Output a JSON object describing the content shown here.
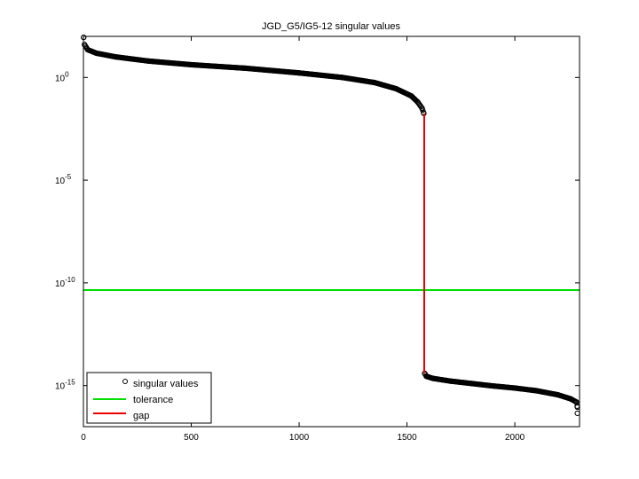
{
  "chart_data": {
    "type": "scatter",
    "title": "JGD_G5/IG5-12 singular values",
    "xlabel": "",
    "ylabel": "",
    "xlim": [
      0,
      2300
    ],
    "ylim_log10": [
      -17,
      2
    ],
    "yscale": "log",
    "grid": false,
    "legend_position": "bottom-left",
    "x_ticks": [
      0,
      500,
      1000,
      1500,
      2000
    ],
    "y_ticks": [
      {
        "base": "10",
        "exp": "0",
        "value_log10": 0
      },
      {
        "base": "10",
        "exp": "-5",
        "value_log10": -5
      },
      {
        "base": "10",
        "exp": "-10",
        "value_log10": -10
      },
      {
        "base": "10",
        "exp": "-15",
        "value_log10": -15
      }
    ],
    "series": [
      {
        "name": "singular values",
        "style": "black-open-circles",
        "color": "#000000",
        "curve_log10": [
          {
            "x": 1,
            "y": 1.95
          },
          {
            "x": 5,
            "y": 1.6
          },
          {
            "x": 20,
            "y": 1.35
          },
          {
            "x": 60,
            "y": 1.18
          },
          {
            "x": 150,
            "y": 1.0
          },
          {
            "x": 300,
            "y": 0.8
          },
          {
            "x": 500,
            "y": 0.62
          },
          {
            "x": 750,
            "y": 0.45
          },
          {
            "x": 1000,
            "y": 0.22
          },
          {
            "x": 1200,
            "y": 0.0
          },
          {
            "x": 1350,
            "y": -0.25
          },
          {
            "x": 1450,
            "y": -0.55
          },
          {
            "x": 1520,
            "y": -0.9
          },
          {
            "x": 1550,
            "y": -1.2
          },
          {
            "x": 1570,
            "y": -1.5
          },
          {
            "x": 1578,
            "y": -1.75
          },
          {
            "x": 1582,
            "y": -14.4
          },
          {
            "x": 1590,
            "y": -14.55
          },
          {
            "x": 1620,
            "y": -14.65
          },
          {
            "x": 1700,
            "y": -14.78
          },
          {
            "x": 1800,
            "y": -14.9
          },
          {
            "x": 1900,
            "y": -15.02
          },
          {
            "x": 2000,
            "y": -15.12
          },
          {
            "x": 2100,
            "y": -15.25
          },
          {
            "x": 2200,
            "y": -15.45
          },
          {
            "x": 2260,
            "y": -15.65
          },
          {
            "x": 2285,
            "y": -15.8
          },
          {
            "x": 2290,
            "y": -16.05
          }
        ],
        "outliers_log10": [
          {
            "x": 2290,
            "y": -16.35
          }
        ]
      },
      {
        "name": "tolerance",
        "style": "line",
        "color": "#00dd00",
        "value_log10": -10.35
      },
      {
        "name": "gap",
        "style": "line",
        "color": "#ee0000",
        "x": 1580,
        "from_log10": -1.75,
        "to_log10": -14.4
      }
    ]
  }
}
